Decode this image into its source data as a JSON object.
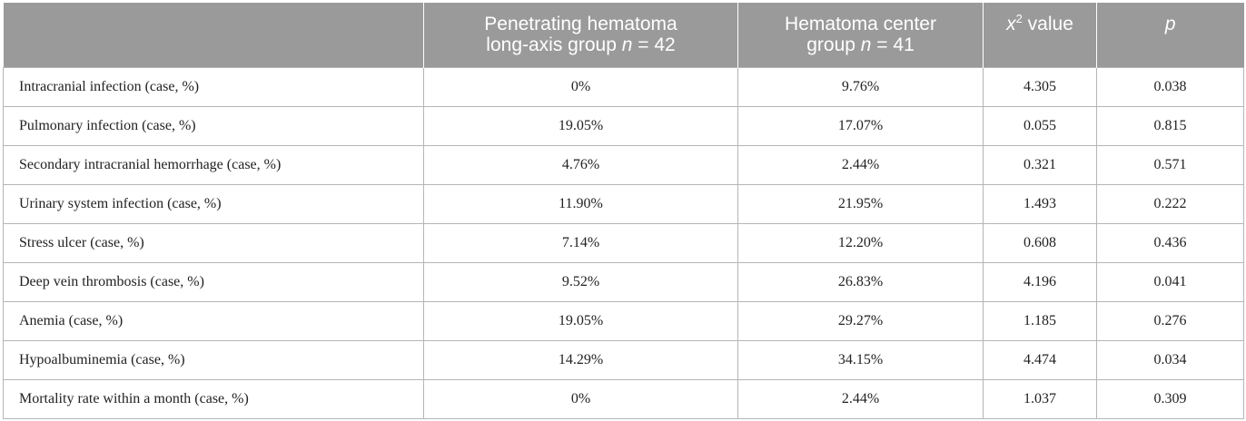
{
  "header": {
    "col1": "",
    "col2_line1": "Penetrating hematoma",
    "col2_line2": "long-axis group ",
    "col2_n": "n",
    "col2_eq": " = 42",
    "col3_line1": "Hematoma center",
    "col3_line2": "group ",
    "col3_n": "n",
    "col3_eq": " = 41",
    "col4_x": "x",
    "col4_sup": "2",
    "col4_rest": " value",
    "col5": "p"
  },
  "rows": [
    [
      "Intracranial infection (case, %)",
      "0%",
      "9.76%",
      "4.305",
      "0.038"
    ],
    [
      "Pulmonary infection (case, %)",
      "19.05%",
      "17.07%",
      "0.055",
      "0.815"
    ],
    [
      "Secondary intracranial hemorrhage (case, %)",
      "4.76%",
      "2.44%",
      "0.321",
      "0.571"
    ],
    [
      "Urinary system infection (case, %)",
      "11.90%",
      "21.95%",
      "1.493",
      "0.222"
    ],
    [
      "Stress ulcer (case, %)",
      "7.14%",
      "12.20%",
      "0.608",
      "0.436"
    ],
    [
      "Deep vein thrombosis (case, %)",
      "9.52%",
      "26.83%",
      "4.196",
      "0.041"
    ],
    [
      "Anemia (case, %)",
      "19.05%",
      "29.27%",
      "1.185",
      "0.276"
    ],
    [
      "Hypoalbuminemia (case, %)",
      "14.29%",
      "34.15%",
      "4.474",
      "0.034"
    ],
    [
      "Mortality rate within a month (case, %)",
      "0%",
      "2.44%",
      "1.037",
      "0.309"
    ]
  ],
  "colors": {
    "header_bg": "#9a9a9a",
    "header_text": "#ffffff",
    "grid": "#b5b5b5"
  }
}
